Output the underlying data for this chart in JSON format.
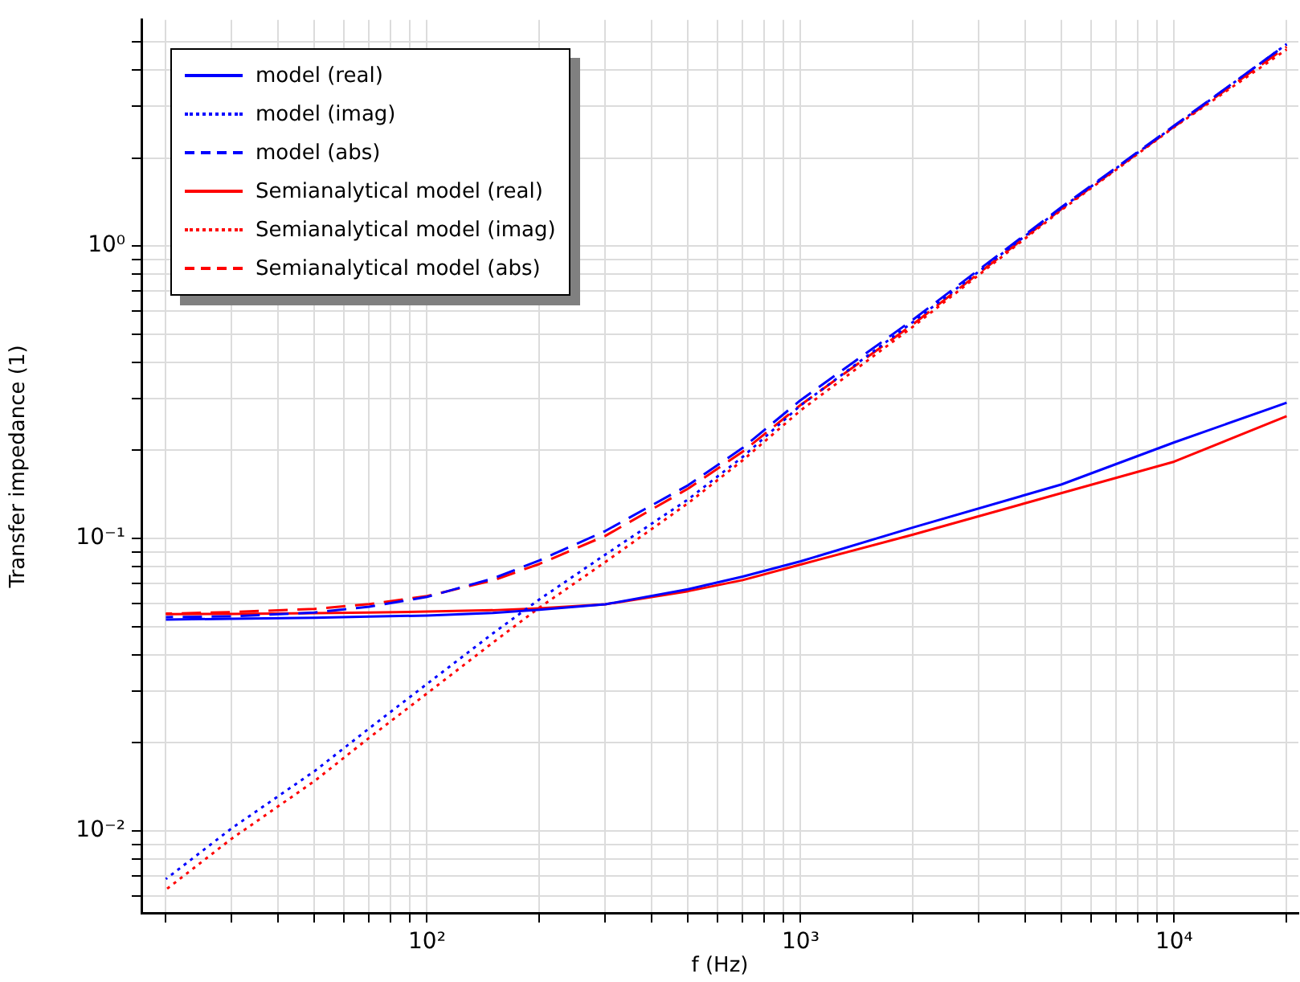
{
  "chart_data": {
    "type": "line",
    "xlabel": "f (Hz)",
    "ylabel": "Transfer impedance (1)",
    "log": "xy",
    "grid": true,
    "legend": "top left",
    "marker": "none",
    "x": [
      20,
      30,
      50,
      70,
      100,
      150,
      200,
      300,
      500,
      700,
      1000,
      2000,
      5000,
      10000,
      20000
    ],
    "xlim": [
      17.2,
      21500
    ],
    "ylim": [
      0.00524,
      5.93
    ],
    "xticks": [
      {
        "value": 20,
        "label": null
      },
      {
        "value": 30,
        "label": null
      },
      {
        "value": 40,
        "label": null
      },
      {
        "value": 50,
        "label": null
      },
      {
        "value": 60,
        "label": null
      },
      {
        "value": 70,
        "label": null
      },
      {
        "value": 80,
        "label": null
      },
      {
        "value": 90,
        "label": null
      },
      {
        "value": 100,
        "label": "10²"
      },
      {
        "value": 200,
        "label": null
      },
      {
        "value": 300,
        "label": null
      },
      {
        "value": 400,
        "label": null
      },
      {
        "value": 500,
        "label": null
      },
      {
        "value": 600,
        "label": null
      },
      {
        "value": 700,
        "label": null
      },
      {
        "value": 800,
        "label": null
      },
      {
        "value": 900,
        "label": null
      },
      {
        "value": 1000,
        "label": "10³"
      },
      {
        "value": 2000,
        "label": null
      },
      {
        "value": 3000,
        "label": null
      },
      {
        "value": 4000,
        "label": null
      },
      {
        "value": 5000,
        "label": null
      },
      {
        "value": 6000,
        "label": null
      },
      {
        "value": 7000,
        "label": null
      },
      {
        "value": 8000,
        "label": null
      },
      {
        "value": 9000,
        "label": null
      },
      {
        "value": 10000,
        "label": "10⁴"
      },
      {
        "value": 20000,
        "label": null
      }
    ],
    "yticks": [
      {
        "value": 0.006,
        "label": null
      },
      {
        "value": 0.007,
        "label": null
      },
      {
        "value": 0.008,
        "label": null
      },
      {
        "value": 0.009,
        "label": null
      },
      {
        "value": 0.01,
        "label": "10⁻²"
      },
      {
        "value": 0.02,
        "label": null
      },
      {
        "value": 0.03,
        "label": null
      },
      {
        "value": 0.04,
        "label": null
      },
      {
        "value": 0.05,
        "label": null
      },
      {
        "value": 0.06,
        "label": null
      },
      {
        "value": 0.07,
        "label": null
      },
      {
        "value": 0.08,
        "label": null
      },
      {
        "value": 0.09,
        "label": null
      },
      {
        "value": 0.1,
        "label": "10⁻¹"
      },
      {
        "value": 0.2,
        "label": null
      },
      {
        "value": 0.3,
        "label": null
      },
      {
        "value": 0.4,
        "label": null
      },
      {
        "value": 0.5,
        "label": null
      },
      {
        "value": 0.6,
        "label": null
      },
      {
        "value": 0.7,
        "label": null
      },
      {
        "value": 0.8,
        "label": null
      },
      {
        "value": 0.9,
        "label": null
      },
      {
        "value": 1,
        "label": "10⁰"
      },
      {
        "value": 2,
        "label": null
      },
      {
        "value": 3,
        "label": null
      },
      {
        "value": 4,
        "label": null
      },
      {
        "value": 5,
        "label": null
      }
    ],
    "series": [
      {
        "name": "model (real)",
        "color": "#0000ff",
        "line_style": "solid",
        "values": [
          0.0528,
          0.0531,
          0.0535,
          0.054,
          0.0545,
          0.0556,
          0.057,
          0.0595,
          0.067,
          0.074,
          0.0835,
          0.109,
          0.153,
          0.213,
          0.291
        ]
      },
      {
        "name": "model (imag)",
        "color": "#0000ff",
        "line_style": "dotted",
        "values": [
          0.00684,
          0.0102,
          0.016,
          0.0224,
          0.0318,
          0.0473,
          0.0619,
          0.088,
          0.136,
          0.19,
          0.285,
          0.55,
          1.35,
          2.57,
          4.9
        ]
      },
      {
        "name": "model (abs)",
        "color": "#0000ff",
        "line_style": "dashed",
        "values": [
          0.0538,
          0.0541,
          0.0558,
          0.0584,
          0.0631,
          0.0729,
          0.0841,
          0.106,
          0.152,
          0.204,
          0.297,
          0.56,
          1.36,
          2.58,
          4.9
        ]
      },
      {
        "name": "Semianalytical model (real)",
        "color": "#ff0000",
        "line_style": "solid",
        "values": [
          0.0551,
          0.0552,
          0.0555,
          0.0558,
          0.0562,
          0.0568,
          0.0577,
          0.0595,
          0.066,
          0.072,
          0.0814,
          0.103,
          0.143,
          0.183,
          0.262
        ]
      },
      {
        "name": "Semianalytical model (imag)",
        "color": "#ff0000",
        "line_style": "dotted",
        "values": [
          0.00629,
          0.0094,
          0.0148,
          0.0208,
          0.0295,
          0.044,
          0.058,
          0.083,
          0.132,
          0.185,
          0.274,
          0.53,
          1.33,
          2.55,
          4.7
        ]
      },
      {
        "name": "Semianalytical model (abs)",
        "color": "#ff0000",
        "line_style": "dashed",
        "values": [
          0.0553,
          0.056,
          0.0574,
          0.0596,
          0.0635,
          0.0718,
          0.0818,
          0.102,
          0.148,
          0.198,
          0.286,
          0.54,
          1.34,
          2.56,
          4.8
        ]
      }
    ]
  }
}
